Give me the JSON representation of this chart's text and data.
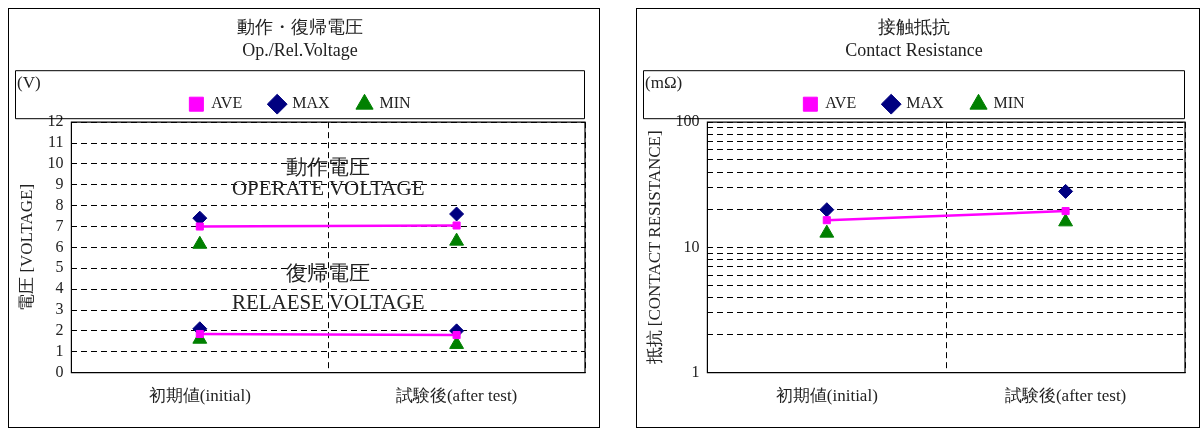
{
  "chart_data": [
    {
      "type": "line",
      "title": "動作・復帰電圧",
      "subtitle": "Op./Rel.Voltage",
      "ylabel": "電圧 [VOLTAGE]",
      "categories": [
        "初期値(initial)",
        "試験後(after test)"
      ],
      "series": [
        {
          "name": "MAX",
          "type": "scatter",
          "marker": "diamond",
          "color": "#000080",
          "values": [
            7.4,
            7.6
          ]
        },
        {
          "name": "AVE",
          "type": "line",
          "marker": "square",
          "color": "#ff00ff",
          "values": [
            7.0,
            7.05
          ]
        },
        {
          "name": "MIN",
          "type": "scatter",
          "marker": "triangle",
          "color": "#008000",
          "values": [
            6.15,
            6.3
          ]
        },
        {
          "type": "scatter",
          "marker": "diamond",
          "color": "#000080",
          "values": [
            2.1,
            2.0
          ]
        },
        {
          "type": "line",
          "marker": "square",
          "color": "#ff00ff",
          "values": [
            1.85,
            1.8
          ]
        },
        {
          "type": "scatter",
          "marker": "triangle",
          "color": "#008000",
          "values": [
            1.6,
            1.35
          ]
        }
      ],
      "ylim": [
        0,
        12
      ],
      "yticks": [
        0,
        1,
        2,
        3,
        4,
        5,
        6,
        7,
        8,
        9,
        10,
        11,
        12
      ],
      "grid": true,
      "legend": "top",
      "annotations": [
        "(V)",
        "動作電圧",
        "OPERATE VOLTAGE",
        "復帰電圧",
        "RELAESE VOLTAGE"
      ]
    },
    {
      "type": "line",
      "title": "接触抵抗",
      "subtitle": "Contact Resistance",
      "ylabel": "抵抗 [CONTACT RESISTANCE]",
      "categories": [
        "初期値(initial)",
        "試験後(after test)"
      ],
      "series": [
        {
          "name": "MAX",
          "type": "scatter",
          "marker": "diamond",
          "color": "#000080",
          "values": [
            20,
            28
          ]
        },
        {
          "name": "AVE",
          "type": "line",
          "marker": "square",
          "color": "#ff00ff",
          "values": [
            16.5,
            19.5
          ]
        },
        {
          "name": "MIN",
          "type": "scatter",
          "marker": "triangle",
          "color": "#008000",
          "values": [
            13,
            16
          ]
        }
      ],
      "log": true,
      "ylim": [
        1,
        100
      ],
      "yticks": [
        1,
        {
          "value": 2,
          "label": null
        },
        {
          "value": 3,
          "label": null
        },
        {
          "value": 4,
          "label": null
        },
        {
          "value": 5,
          "label": null
        },
        {
          "value": 6,
          "label": null
        },
        {
          "value": 7,
          "label": null
        },
        {
          "value": 8,
          "label": null
        },
        {
          "value": 9,
          "label": null
        },
        10,
        {
          "value": 20,
          "label": null
        },
        {
          "value": 30,
          "label": null
        },
        {
          "value": 40,
          "label": null
        },
        {
          "value": 50,
          "label": null
        },
        {
          "value": 60,
          "label": null
        },
        {
          "value": 70,
          "label": null
        },
        {
          "value": 80,
          "label": null
        },
        {
          "value": 90,
          "label": null
        },
        100
      ],
      "grid": true,
      "legend": "top",
      "annotations": [
        "(mΩ)"
      ]
    }
  ]
}
